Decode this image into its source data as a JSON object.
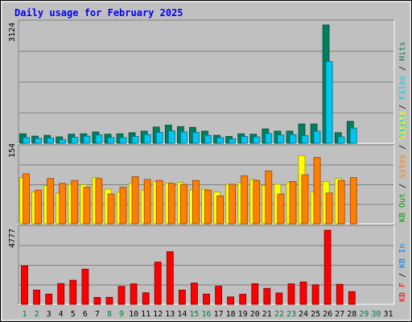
{
  "colors": {
    "background": "#c0c0c0",
    "panel": "#c0c0c0",
    "title": "#0000ff",
    "hits": "#007f5f",
    "files": "#00c6f0",
    "pages": "#00e0e0",
    "visits": "#ffff00",
    "sites": "#ff8000",
    "kbout": "#00a000",
    "kbin": "#0080ff",
    "kbf": "#ff0000",
    "weekend_day": "#008040",
    "weekday": "#000000"
  },
  "chart_data": {
    "type": "bar",
    "title": "Daily usage for February 2025",
    "categories": [
      "1",
      "2",
      "3",
      "4",
      "5",
      "6",
      "7",
      "8",
      "9",
      "10",
      "11",
      "12",
      "13",
      "14",
      "15",
      "16",
      "17",
      "18",
      "19",
      "20",
      "21",
      "22",
      "23",
      "24",
      "25",
      "26",
      "27",
      "28",
      "29",
      "30",
      "31"
    ],
    "weekend_days": [
      "1",
      "2",
      "8",
      "9",
      "15",
      "16",
      "22",
      "23",
      "29",
      "30"
    ],
    "panels": [
      {
        "ylabel_max": "3124",
        "max": 3124,
        "legend": [
          {
            "text": "Hits",
            "color": "#007f5f"
          },
          {
            "text": " / ",
            "color": "#000000"
          },
          {
            "text": "Files",
            "color": "#00c6f0"
          },
          {
            "text": " / ",
            "color": "#000000"
          },
          {
            "text": "Pages",
            "color": "#00e0e0"
          }
        ],
        "series": [
          {
            "name": "Hits",
            "color": "#007f5f",
            "values": [
              250,
              190,
              210,
              170,
              240,
              250,
              300,
              240,
              250,
              280,
              320,
              430,
              480,
              440,
              420,
              320,
              210,
              180,
              250,
              240,
              380,
              320,
              320,
              510,
              510,
              3124,
              280,
              580,
              0,
              0,
              0
            ]
          },
          {
            "name": "Files",
            "color": "#00c6f0",
            "values": [
              150,
              130,
              140,
              100,
              160,
              190,
              220,
              150,
              150,
              180,
              230,
              290,
              330,
              300,
              290,
              210,
              150,
              120,
              180,
              170,
              260,
              220,
              230,
              200,
              320,
              2160,
              170,
              400,
              0,
              0,
              0
            ]
          }
        ]
      },
      {
        "ylabel_max": "154",
        "max": 154,
        "legend": [
          {
            "text": "Visits",
            "color": "#ffff00"
          },
          {
            "text": " / ",
            "color": "#000000"
          },
          {
            "text": "Sites",
            "color": "#ff8000"
          },
          {
            "text": " / ",
            "color": "#000000"
          },
          {
            "text": "KB Out",
            "color": "#00a000"
          }
        ],
        "series": [
          {
            "name": "Visits",
            "color": "#ffff00",
            "values": [
              96,
              66,
              80,
              64,
              82,
              81,
              96,
              72,
              66,
              84,
              70,
              88,
              85,
              86,
              70,
              72,
              66,
              82,
              86,
              92,
              80,
              82,
              86,
              142,
              66,
              88,
              94,
              0,
              0,
              0,
              0
            ]
          },
          {
            "name": "Sites",
            "color": "#ff8000",
            "values": [
              104,
              70,
              94,
              84,
              90,
              76,
              94,
              62,
              76,
              98,
              92,
              90,
              84,
              82,
              90,
              70,
              58,
              82,
              100,
              90,
              110,
              62,
              88,
              102,
              138,
              64,
              90,
              96,
              0,
              0,
              0
            ]
          }
        ]
      },
      {
        "ylabel_max": "4777",
        "max": 4777,
        "legend": [
          {
            "text": "KB F",
            "color": "#ff0000"
          },
          {
            "text": " / ",
            "color": "#000000"
          },
          {
            "text": "KB In",
            "color": "#0080ff"
          }
        ],
        "series": [
          {
            "name": "KB F",
            "color": "#ff0000",
            "values": [
              2470,
              920,
              660,
              1340,
              1550,
              2270,
              440,
              450,
              1160,
              1320,
              740,
              2720,
              3390,
              920,
              1370,
              660,
              1170,
              480,
              650,
              1330,
              1030,
              730,
              1320,
              1440,
              1260,
              4777,
              1290,
              820,
              0,
              0,
              0
            ]
          }
        ]
      }
    ]
  }
}
